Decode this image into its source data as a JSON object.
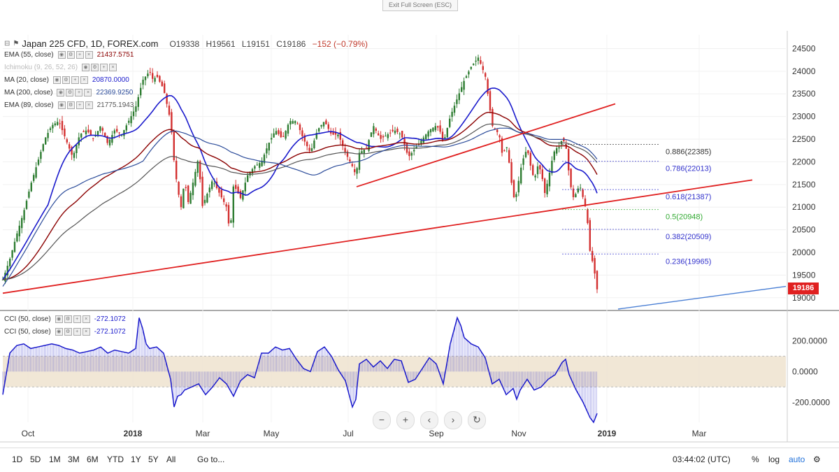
{
  "toolbar": {
    "exit_fullscreen": "Exit Full Screen (ESC)"
  },
  "header": {
    "symbol": "Japan 225 CFD, 1D, FOREX.com",
    "open": "O19338",
    "high": "H19561",
    "low": "L19151",
    "close": "C19186",
    "change": "−152 (−0.79%)"
  },
  "indicators": [
    {
      "label": "EMA (55, close)",
      "value": "21437.5751",
      "color": "#8b0000"
    },
    {
      "label": "Ichimoku (9, 26, 52, 26)",
      "value": "",
      "color": "#aaaaaa"
    },
    {
      "label": "MA (20, close)",
      "value": "20870.0000",
      "color": "#1a1acc"
    },
    {
      "label": "MA (200, close)",
      "value": "22369.9250",
      "color": "#2c4c9a"
    },
    {
      "label": "EMA (89, close)",
      "value": "21775.1943",
      "color": "#555555"
    }
  ],
  "cci_legend": [
    {
      "label": "CCI (50, close)",
      "value": "-272.1072"
    },
    {
      "label": "CCI (50, close)",
      "value": "-272.1072"
    }
  ],
  "current_price": "19186",
  "bottom": {
    "timeframes": [
      "1D",
      "5D",
      "1M",
      "3M",
      "6M",
      "YTD",
      "1Y",
      "5Y",
      "All"
    ],
    "goto": "Go to...",
    "clock": "03:44:02 (UTC)",
    "percent": "%",
    "log": "log",
    "auto": "auto"
  },
  "chart_data": [
    {
      "type": "candlestick",
      "title": "Japan 225 CFD, 1D, FOREX.com",
      "y_ticks": [
        19000,
        19500,
        20000,
        20500,
        21000,
        21500,
        22000,
        22500,
        23000,
        23500,
        24000,
        24500
      ],
      "ylim": [
        18750,
        24800
      ],
      "x_labels": [
        "Oct",
        "2018",
        "Mar",
        "May",
        "Jul",
        "Sep",
        "Nov",
        "2019",
        "Mar"
      ],
      "fib_levels": [
        {
          "label": "0.886(22385)",
          "value": 22385,
          "color": "#333333"
        },
        {
          "label": "0.786(22013)",
          "value": 22013,
          "color": "#3333cc"
        },
        {
          "label": "0.618(21387)",
          "value": 21387,
          "color": "#3333cc"
        },
        {
          "label": "0.5(20948)",
          "value": 20948,
          "color": "#33aa33"
        },
        {
          "label": "0.382(20509)",
          "value": 20509,
          "color": "#3333cc"
        },
        {
          "label": "0.236(19965)",
          "value": 19965,
          "color": "#3333cc"
        }
      ],
      "price_path": [
        [
          0,
          19400
        ],
        [
          10,
          19850
        ],
        [
          20,
          20400
        ],
        [
          30,
          20900
        ],
        [
          40,
          21500
        ],
        [
          50,
          22000
        ],
        [
          60,
          22500
        ],
        [
          70,
          22800
        ],
        [
          80,
          22900
        ],
        [
          90,
          22500
        ],
        [
          100,
          22100
        ],
        [
          110,
          22600
        ],
        [
          120,
          22700
        ],
        [
          130,
          22500
        ],
        [
          140,
          22800
        ],
        [
          150,
          22400
        ],
        [
          160,
          22700
        ],
        [
          170,
          22600
        ],
        [
          180,
          22900
        ],
        [
          190,
          23200
        ],
        [
          200,
          23800
        ],
        [
          210,
          24000
        ],
        [
          215,
          23800
        ],
        [
          220,
          23900
        ],
        [
          230,
          23600
        ],
        [
          240,
          22900
        ],
        [
          245,
          22000
        ],
        [
          250,
          21400
        ],
        [
          255,
          21000
        ],
        [
          260,
          21600
        ],
        [
          265,
          21100
        ],
        [
          270,
          21400
        ],
        [
          280,
          22100
        ],
        [
          285,
          21000
        ],
        [
          290,
          21200
        ],
        [
          300,
          21600
        ],
        [
          310,
          21300
        ],
        [
          320,
          21000
        ],
        [
          325,
          20400
        ],
        [
          330,
          21500
        ],
        [
          340,
          21200
        ],
        [
          350,
          21700
        ],
        [
          360,
          21900
        ],
        [
          370,
          22000
        ],
        [
          380,
          22400
        ],
        [
          390,
          22700
        ],
        [
          400,
          22500
        ],
        [
          410,
          22900
        ],
        [
          420,
          22900
        ],
        [
          430,
          22500
        ],
        [
          440,
          22200
        ],
        [
          450,
          22700
        ],
        [
          460,
          22900
        ],
        [
          470,
          22600
        ],
        [
          480,
          22600
        ],
        [
          490,
          22200
        ],
        [
          500,
          21900
        ],
        [
          505,
          21700
        ],
        [
          510,
          22200
        ],
        [
          520,
          22300
        ],
        [
          530,
          22800
        ],
        [
          540,
          22500
        ],
        [
          550,
          22600
        ],
        [
          560,
          22700
        ],
        [
          570,
          22600
        ],
        [
          580,
          22100
        ],
        [
          590,
          22300
        ],
        [
          600,
          22500
        ],
        [
          610,
          22700
        ],
        [
          620,
          22800
        ],
        [
          625,
          22700
        ],
        [
          630,
          22400
        ],
        [
          640,
          23000
        ],
        [
          650,
          23400
        ],
        [
          660,
          23800
        ],
        [
          670,
          24100
        ],
        [
          680,
          24300
        ],
        [
          685,
          24100
        ],
        [
          690,
          23900
        ],
        [
          700,
          22800
        ],
        [
          710,
          22600
        ],
        [
          715,
          22100
        ],
        [
          720,
          22400
        ],
        [
          725,
          21900
        ],
        [
          730,
          21200
        ],
        [
          735,
          21300
        ],
        [
          740,
          21800
        ],
        [
          745,
          22100
        ],
        [
          750,
          22300
        ],
        [
          755,
          21900
        ],
        [
          760,
          21600
        ],
        [
          765,
          21900
        ],
        [
          770,
          21800
        ],
        [
          775,
          21300
        ],
        [
          780,
          21600
        ],
        [
          785,
          22000
        ],
        [
          790,
          22300
        ],
        [
          795,
          22300
        ],
        [
          800,
          22500
        ],
        [
          805,
          22400
        ],
        [
          810,
          21700
        ],
        [
          815,
          21200
        ],
        [
          820,
          21300
        ],
        [
          825,
          21500
        ],
        [
          830,
          21200
        ],
        [
          835,
          20900
        ],
        [
          840,
          20000
        ],
        [
          845,
          19700
        ],
        [
          850,
          19186
        ]
      ]
    },
    {
      "type": "line",
      "title": "CCI (50, close)",
      "y_ticks": [
        200,
        0,
        -200
      ],
      "ylim": [
        -330,
        370
      ],
      "band": [
        -100,
        100
      ],
      "values_x": [
        0,
        10,
        20,
        30,
        40,
        50,
        60,
        70,
        80,
        90,
        100,
        110,
        120,
        130,
        140,
        150,
        160,
        170,
        180,
        190,
        195,
        200,
        205,
        210,
        220,
        230,
        240,
        245,
        250,
        255,
        260,
        270,
        280,
        290,
        300,
        310,
        320,
        330,
        340,
        350,
        360,
        370,
        380,
        390,
        400,
        410,
        420,
        430,
        440,
        450,
        460,
        470,
        480,
        490,
        500,
        505,
        510,
        520,
        530,
        540,
        550,
        560,
        570,
        580,
        590,
        600,
        610,
        620,
        630,
        640,
        650,
        655,
        660,
        670,
        680,
        690,
        700,
        710,
        720,
        730,
        735,
        740,
        750,
        760,
        770,
        780,
        790,
        800,
        805,
        810,
        820,
        830,
        840,
        845,
        850
      ],
      "values": [
        -150,
        120,
        170,
        180,
        150,
        160,
        170,
        180,
        170,
        150,
        140,
        120,
        130,
        140,
        160,
        120,
        140,
        130,
        120,
        150,
        350,
        280,
        180,
        150,
        160,
        120,
        -50,
        -230,
        -160,
        -150,
        -120,
        -100,
        -80,
        -150,
        -100,
        -40,
        -80,
        -160,
        -60,
        -20,
        -40,
        120,
        120,
        160,
        140,
        150,
        80,
        20,
        0,
        130,
        160,
        100,
        10,
        -60,
        -230,
        -180,
        50,
        80,
        30,
        70,
        20,
        80,
        70,
        -70,
        -50,
        20,
        90,
        50,
        -80,
        180,
        350,
        300,
        220,
        180,
        160,
        90,
        -80,
        -50,
        -150,
        -110,
        -180,
        -120,
        -50,
        -120,
        -100,
        -50,
        -20,
        60,
        80,
        -20,
        -120,
        -200,
        -300,
        -330,
        -272
      ]
    }
  ]
}
